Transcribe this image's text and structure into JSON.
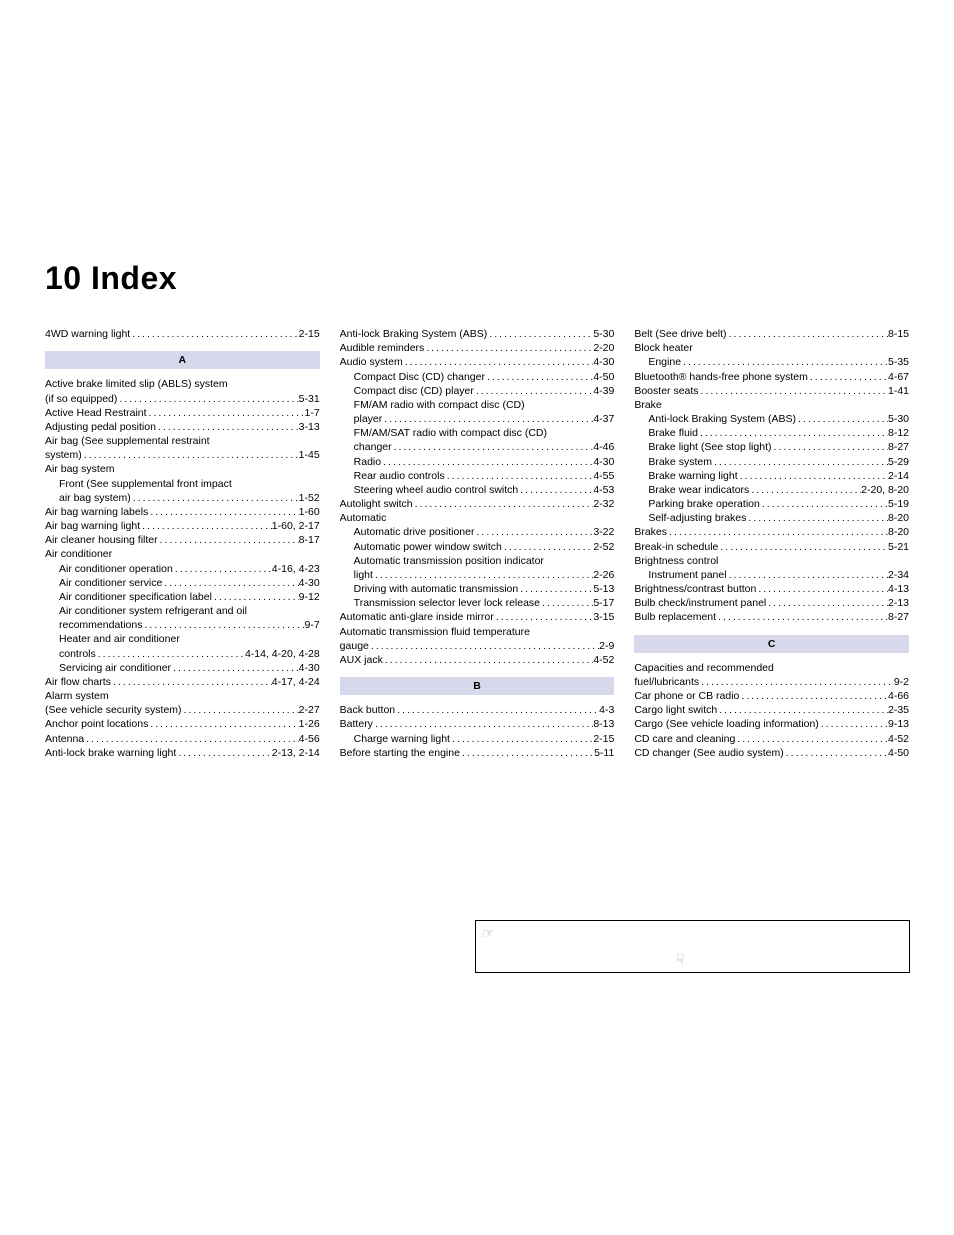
{
  "title": "10  Index",
  "columns": [
    {
      "blocks": [
        {
          "type": "entry",
          "label": "4WD warning light",
          "page": "2-15"
        },
        {
          "type": "header",
          "text": "A"
        },
        {
          "type": "plain",
          "label": "Active brake limited slip (ABLS) system"
        },
        {
          "type": "entry",
          "label": "(if so equipped)",
          "page": "5-31"
        },
        {
          "type": "entry",
          "label": "Active Head Restraint",
          "page": "1-7"
        },
        {
          "type": "entry",
          "label": "Adjusting pedal position",
          "page": "3-13"
        },
        {
          "type": "plain",
          "label": "Air bag (See supplemental restraint"
        },
        {
          "type": "entry",
          "label": "system)",
          "page": "1-45"
        },
        {
          "type": "plain",
          "label": "Air bag system"
        },
        {
          "type": "plain",
          "indent": 1,
          "label": "Front (See supplemental front impact"
        },
        {
          "type": "entry",
          "indent": 1,
          "label": "air bag system)",
          "page": "1-52"
        },
        {
          "type": "entry",
          "label": "Air bag warning labels",
          "page": "1-60"
        },
        {
          "type": "entry",
          "label": "Air bag warning light",
          "page": "1-60, 2-17"
        },
        {
          "type": "entry",
          "label": "Air cleaner housing filter",
          "page": "8-17"
        },
        {
          "type": "plain",
          "label": "Air conditioner"
        },
        {
          "type": "entry",
          "indent": 1,
          "label": "Air conditioner operation",
          "page": "4-16, 4-23"
        },
        {
          "type": "entry",
          "indent": 1,
          "label": "Air conditioner service",
          "page": "4-30"
        },
        {
          "type": "entry",
          "indent": 1,
          "label": "Air conditioner specification label",
          "page": "9-12"
        },
        {
          "type": "plain",
          "indent": 1,
          "label": "Air conditioner system refrigerant and oil"
        },
        {
          "type": "entry",
          "indent": 1,
          "label": "recommendations",
          "page": "9-7"
        },
        {
          "type": "plain",
          "indent": 1,
          "label": "Heater and air conditioner"
        },
        {
          "type": "entry",
          "indent": 1,
          "label": "controls",
          "page": "4-14, 4-20, 4-28"
        },
        {
          "type": "entry",
          "indent": 1,
          "label": "Servicing air conditioner",
          "page": "4-30"
        },
        {
          "type": "entry",
          "label": "Air flow charts",
          "page": "4-17, 4-24"
        },
        {
          "type": "plain",
          "label": "Alarm system"
        },
        {
          "type": "entry",
          "label": "(See vehicle security system)",
          "page": "2-27"
        },
        {
          "type": "entry",
          "label": "Anchor point locations",
          "page": "1-26"
        },
        {
          "type": "entry",
          "label": "Antenna",
          "page": "4-56"
        },
        {
          "type": "entry",
          "label": "Anti-lock brake warning light",
          "page": "2-13, 2-14"
        }
      ]
    },
    {
      "blocks": [
        {
          "type": "entry",
          "label": "Anti-lock Braking System (ABS)",
          "page": "5-30"
        },
        {
          "type": "entry",
          "label": "Audible reminders",
          "page": "2-20"
        },
        {
          "type": "entry",
          "label": "Audio system",
          "page": "4-30"
        },
        {
          "type": "entry",
          "indent": 1,
          "label": "Compact Disc (CD) changer",
          "page": "4-50"
        },
        {
          "type": "entry",
          "indent": 1,
          "label": "Compact disc (CD) player",
          "page": "4-39"
        },
        {
          "type": "plain",
          "indent": 1,
          "label": "FM/AM radio with compact disc (CD)"
        },
        {
          "type": "entry",
          "indent": 1,
          "label": "player",
          "page": "4-37"
        },
        {
          "type": "plain",
          "indent": 1,
          "label": "FM/AM/SAT radio with compact disc (CD)"
        },
        {
          "type": "entry",
          "indent": 1,
          "label": "changer",
          "page": "4-46"
        },
        {
          "type": "entry",
          "indent": 1,
          "label": "Radio",
          "page": "4-30"
        },
        {
          "type": "entry",
          "indent": 1,
          "label": "Rear audio controls",
          "page": "4-55"
        },
        {
          "type": "entry",
          "indent": 1,
          "label": "Steering wheel audio control switch",
          "page": "4-53"
        },
        {
          "type": "entry",
          "label": "Autolight switch",
          "page": "2-32"
        },
        {
          "type": "plain",
          "label": "Automatic"
        },
        {
          "type": "entry",
          "indent": 1,
          "label": "Automatic drive positioner",
          "page": "3-22"
        },
        {
          "type": "entry",
          "indent": 1,
          "label": "Automatic power window switch",
          "page": "2-52"
        },
        {
          "type": "plain",
          "indent": 1,
          "label": "Automatic transmission position indicator"
        },
        {
          "type": "entry",
          "indent": 1,
          "label": "light",
          "page": "2-26"
        },
        {
          "type": "entry",
          "indent": 1,
          "label": "Driving with automatic transmission",
          "page": "5-13"
        },
        {
          "type": "entry",
          "indent": 1,
          "label": "Transmission selector lever lock release",
          "page": "5-17"
        },
        {
          "type": "entry",
          "label": "Automatic anti-glare inside mirror",
          "page": "3-15"
        },
        {
          "type": "plain",
          "label": "Automatic transmission fluid temperature"
        },
        {
          "type": "entry",
          "label": "gauge",
          "page": "2-9"
        },
        {
          "type": "entry",
          "label": "AUX jack",
          "page": "4-52"
        },
        {
          "type": "header",
          "text": "B"
        },
        {
          "type": "entry",
          "label": "Back button",
          "page": "4-3"
        },
        {
          "type": "entry",
          "label": "Battery",
          "page": "8-13"
        },
        {
          "type": "entry",
          "indent": 1,
          "label": "Charge warning light",
          "page": "2-15"
        },
        {
          "type": "entry",
          "label": "Before starting the engine",
          "page": "5-11"
        }
      ]
    },
    {
      "blocks": [
        {
          "type": "entry",
          "label": "Belt (See drive belt)",
          "page": "8-15"
        },
        {
          "type": "plain",
          "label": "Block heater"
        },
        {
          "type": "entry",
          "indent": 1,
          "label": "Engine",
          "page": "5-35"
        },
        {
          "type": "entry",
          "label": "Bluetooth® hands-free phone system",
          "page": "4-67"
        },
        {
          "type": "entry",
          "label": "Booster seats",
          "page": "1-41"
        },
        {
          "type": "plain",
          "label": "Brake"
        },
        {
          "type": "entry",
          "indent": 1,
          "label": "Anti-lock Braking System (ABS)",
          "page": "5-30"
        },
        {
          "type": "entry",
          "indent": 1,
          "label": "Brake fluid",
          "page": "8-12"
        },
        {
          "type": "entry",
          "indent": 1,
          "label": "Brake light (See stop light)",
          "page": "8-27"
        },
        {
          "type": "entry",
          "indent": 1,
          "label": "Brake system",
          "page": "5-29"
        },
        {
          "type": "entry",
          "indent": 1,
          "label": "Brake warning light",
          "page": "2-14"
        },
        {
          "type": "entry",
          "indent": 1,
          "label": "Brake wear indicators",
          "page": "2-20, 8-20"
        },
        {
          "type": "entry",
          "indent": 1,
          "label": "Parking brake operation",
          "page": "5-19"
        },
        {
          "type": "entry",
          "indent": 1,
          "label": "Self-adjusting brakes",
          "page": "8-20"
        },
        {
          "type": "entry",
          "label": "Brakes",
          "page": "8-20"
        },
        {
          "type": "entry",
          "label": "Break-in schedule",
          "page": "5-21"
        },
        {
          "type": "plain",
          "label": "Brightness control"
        },
        {
          "type": "entry",
          "indent": 1,
          "label": "Instrument panel",
          "page": "2-34"
        },
        {
          "type": "entry",
          "label": "Brightness/contrast button",
          "page": "4-13"
        },
        {
          "type": "entry",
          "label": "Bulb check/instrument panel",
          "page": "2-13"
        },
        {
          "type": "entry",
          "label": "Bulb replacement",
          "page": "8-27"
        },
        {
          "type": "header",
          "text": "C"
        },
        {
          "type": "plain",
          "label": "Capacities and recommended"
        },
        {
          "type": "entry",
          "label": "fuel/lubricants",
          "page": "9-2"
        },
        {
          "type": "entry",
          "label": "Car phone or CB radio",
          "page": "4-66"
        },
        {
          "type": "entry",
          "label": "Cargo light switch",
          "page": "2-35"
        },
        {
          "type": "entry",
          "label": "Cargo (See vehicle loading information)",
          "page": "9-13"
        },
        {
          "type": "entry",
          "label": "CD care and cleaning",
          "page": "4-52"
        },
        {
          "type": "entry",
          "label": "CD changer (See audio system)",
          "page": "4-50"
        }
      ]
    }
  ]
}
